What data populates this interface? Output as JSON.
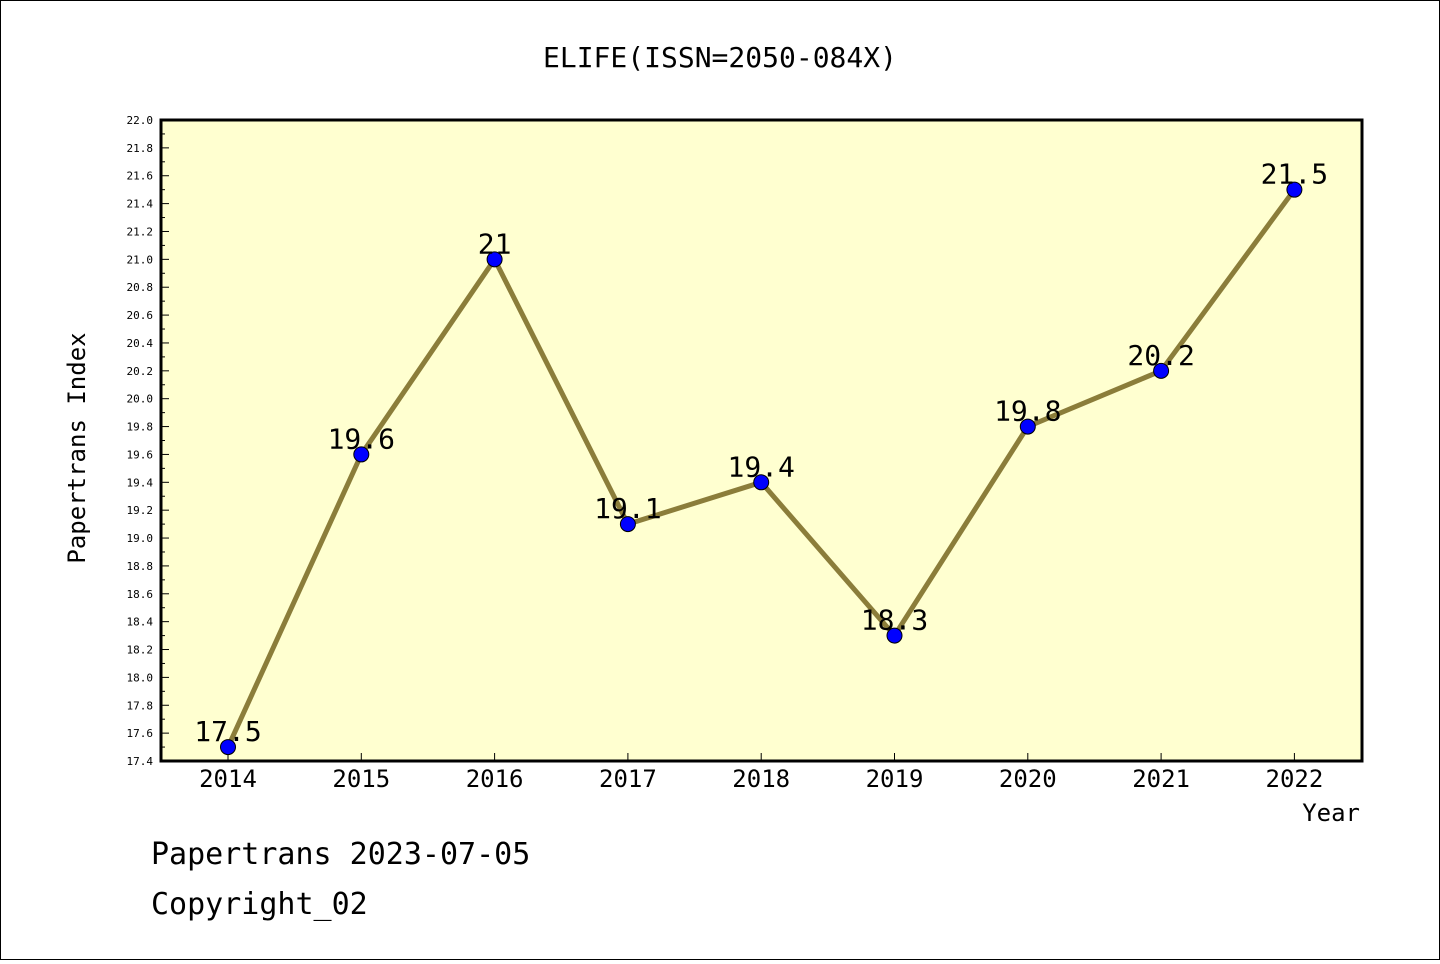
{
  "chart_data": {
    "type": "line",
    "title": "ELIFE(ISSN=2050-084X)",
    "xlabel": "Year",
    "ylabel": "Papertrans Index",
    "categories": [
      "2014",
      "2015",
      "2016",
      "2017",
      "2018",
      "2019",
      "2020",
      "2021",
      "2022"
    ],
    "values": [
      17.5,
      19.6,
      21.0,
      19.1,
      19.4,
      18.3,
      19.8,
      20.2,
      21.5
    ],
    "data_labels": [
      "17.5",
      "19.6",
      "21",
      "19.1",
      "19.4",
      "18.3",
      "19.8",
      "20.2",
      "21.5"
    ],
    "ylim": [
      17.4,
      22.0
    ],
    "ytick_step": 0.2,
    "grid": false,
    "colors": {
      "plot_bg": "#ffffd0",
      "line": "#8b7d3a",
      "marker": "#0000ff"
    }
  },
  "footer": {
    "line1": "Papertrans 2023-07-05",
    "line2": "Copyright_02"
  }
}
